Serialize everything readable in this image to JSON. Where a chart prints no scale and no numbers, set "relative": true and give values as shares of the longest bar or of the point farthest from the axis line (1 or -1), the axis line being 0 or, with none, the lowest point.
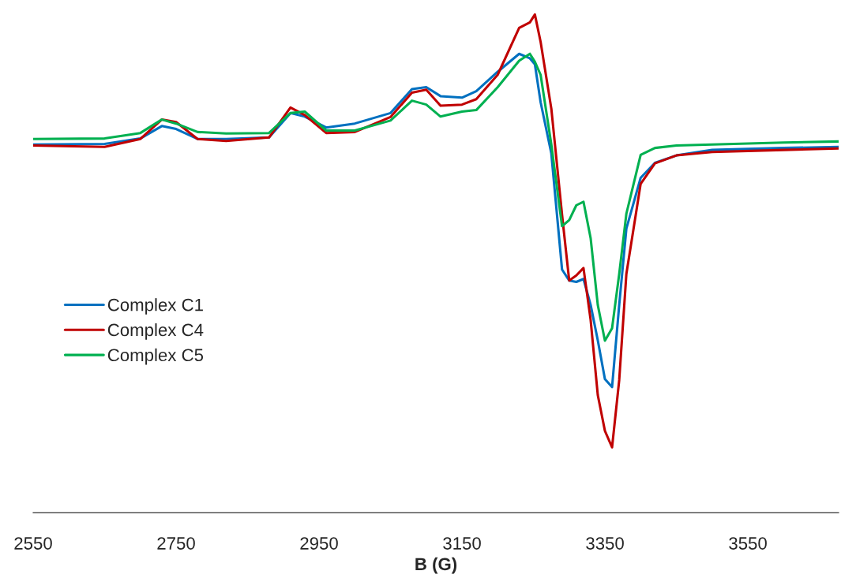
{
  "chart_data": {
    "type": "line",
    "xlabel": "B (G)",
    "relative": true,
    "x": [
      2550,
      2650,
      2700,
      2730,
      2750,
      2780,
      2820,
      2880,
      2910,
      2930,
      2960,
      3000,
      3050,
      3080,
      3100,
      3120,
      3150,
      3170,
      3200,
      3230,
      3245,
      3252,
      3260,
      3275,
      3290,
      3300,
      3310,
      3320,
      3330,
      3340,
      3350,
      3360,
      3370,
      3380,
      3400,
      3420,
      3450,
      3500,
      3600,
      3677
    ],
    "series": [
      {
        "name": "Complex C1",
        "color": "#0070c0",
        "values": [
          0.739,
          0.74,
          0.751,
          0.776,
          0.77,
          0.75,
          0.75,
          0.753,
          0.802,
          0.795,
          0.773,
          0.781,
          0.802,
          0.85,
          0.854,
          0.836,
          0.833,
          0.846,
          0.885,
          0.921,
          0.912,
          0.9,
          0.824,
          0.721,
          0.488,
          0.466,
          0.463,
          0.469,
          0.417,
          0.346,
          0.268,
          0.252,
          0.417,
          0.57,
          0.672,
          0.702,
          0.717,
          0.728,
          0.732,
          0.734
        ]
      },
      {
        "name": "Complex C4",
        "color": "#c00000",
        "values": [
          0.737,
          0.734,
          0.75,
          0.789,
          0.784,
          0.75,
          0.746,
          0.753,
          0.813,
          0.798,
          0.762,
          0.764,
          0.794,
          0.843,
          0.849,
          0.817,
          0.819,
          0.83,
          0.879,
          0.973,
          0.984,
          1.0,
          0.945,
          0.811,
          0.598,
          0.466,
          0.476,
          0.491,
          0.387,
          0.236,
          0.164,
          0.131,
          0.266,
          0.479,
          0.66,
          0.701,
          0.717,
          0.724,
          0.728,
          0.731
        ]
      },
      {
        "name": "Complex C5",
        "color": "#00b050",
        "values": [
          0.75,
          0.751,
          0.762,
          0.789,
          0.781,
          0.764,
          0.761,
          0.762,
          0.802,
          0.805,
          0.767,
          0.767,
          0.787,
          0.827,
          0.819,
          0.795,
          0.805,
          0.808,
          0.854,
          0.907,
          0.921,
          0.905,
          0.879,
          0.739,
          0.575,
          0.587,
          0.617,
          0.624,
          0.551,
          0.417,
          0.345,
          0.37,
          0.479,
          0.6,
          0.718,
          0.732,
          0.737,
          0.739,
          0.743,
          0.745
        ]
      }
    ],
    "xlim": [
      2550,
      3677
    ],
    "xticks": [
      2550,
      2750,
      2950,
      3150,
      3350,
      3550
    ],
    "legend": "left",
    "grid": false,
    "line_style": "solid",
    "marker": "none"
  }
}
